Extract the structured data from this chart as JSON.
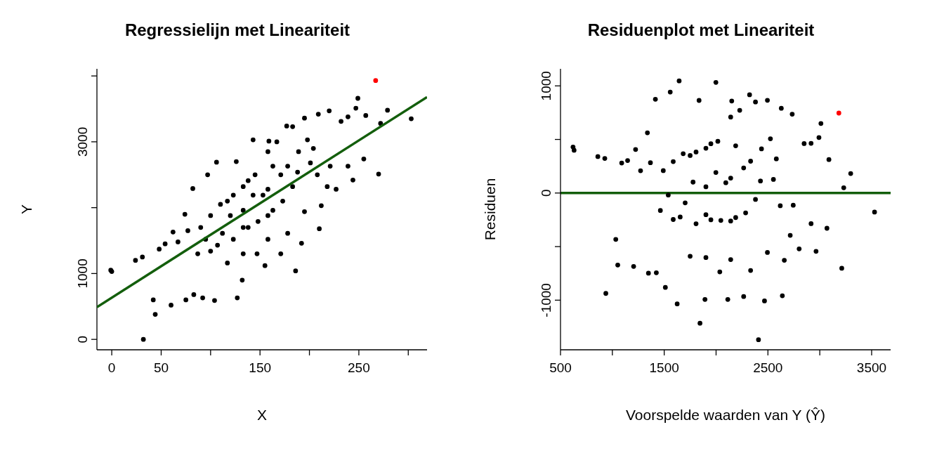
{
  "chart_data": [
    {
      "type": "scatter",
      "title": "Regressielijn met Lineariteit",
      "xlabel": "X",
      "ylabel": "Y",
      "xlim": [
        -15,
        319
      ],
      "ylim": [
        -158,
        4108
      ],
      "xticks": [
        0,
        50,
        {
          "value": 100,
          "label": null
        },
        150,
        {
          "value": 200,
          "label": null
        },
        250,
        {
          "value": 300,
          "label": null
        }
      ],
      "yticks": [
        0,
        1000,
        {
          "value": 2000,
          "label": null
        },
        3000,
        {
          "value": 4000,
          "label": null
        }
      ],
      "marker": "circle",
      "series": [
        {
          "color": "#000000",
          "x": [
            -1,
            0,
            24,
            32,
            42,
            44,
            31,
            48,
            60,
            54,
            62,
            75,
            74,
            82,
            83,
            92,
            97,
            106,
            104,
            100,
            112,
            117,
            126,
            127,
            132,
            133,
            138,
            143,
            147,
            155,
            158,
            159,
            167,
            153,
            163,
            171,
            177,
            183,
            192,
            186,
            195,
            198,
            195,
            210,
            209,
            220,
            212,
            218,
            227,
            232,
            239,
            239,
            244,
            247,
            249,
            257,
            255,
            270,
            272,
            279,
            303,
            120,
            133,
            143,
            158,
            171,
            178,
            188,
            201,
            148,
            138,
            123,
            107,
            95,
            87,
            77,
            67,
            158,
            173,
            183,
            208,
            221,
            133,
            123,
            110,
            100,
            90,
            145,
            163,
            189,
            204,
            117,
            133,
            158,
            178
          ],
          "values": [
            1050,
            1030,
            1200,
            0,
            600,
            380,
            1250,
            1370,
            520,
            1450,
            1630,
            600,
            1900,
            2290,
            680,
            630,
            2500,
            2690,
            590,
            1340,
            1610,
            2100,
            2700,
            630,
            900,
            1700,
            2410,
            3030,
            1300,
            1120,
            2850,
            3010,
            3000,
            2190,
            1960,
            1300,
            3240,
            3230,
            1460,
            1040,
            3360,
            3030,
            1940,
            1680,
            3420,
            3470,
            2030,
            2320,
            2280,
            3310,
            3380,
            2630,
            2420,
            3510,
            3660,
            3400,
            2740,
            2510,
            3280,
            3480,
            3350,
            1880,
            1960,
            2190,
            2280,
            2500,
            2630,
            2540,
            2680,
            1790,
            1700,
            1520,
            1430,
            1520,
            1300,
            1650,
            1480,
            1880,
            2100,
            2320,
            2500,
            2630,
            2320,
            2190,
            2050,
            1880,
            1700,
            2500,
            2630,
            2850,
            2900,
            1160,
            1300,
            1520,
            1610
          ]
        },
        {
          "color": "#ff0000",
          "x": [
            267
          ],
          "values": [
            3930
          ]
        },
        {
          "type": "line",
          "color": "#135e0c",
          "marker": "none",
          "x": [
            -15,
            319
          ],
          "values": [
            490,
            3680
          ]
        }
      ]
    },
    {
      "type": "scatter",
      "title": "Residuenplot met Lineariteit",
      "xlabel": "Voorspelde waarden van Y (Ŷ)",
      "ylabel": "Residuen",
      "xlim": [
        500,
        3683
      ],
      "ylim": [
        -1463,
        1159
      ],
      "xticks": [
        500,
        {
          "value": 1000,
          "label": null
        },
        1500,
        {
          "value": 2000,
          "label": null
        },
        2500,
        {
          "value": 3000,
          "label": null
        },
        3500
      ],
      "yticks": [
        -1000,
        {
          "value": -500,
          "label": null
        },
        0,
        {
          "value": 500,
          "label": null
        },
        1000
      ],
      "marker": "circle",
      "ref_lines": [
        {
          "axis": "y",
          "value": 0,
          "color": "#135e0c"
        }
      ],
      "series": [
        {
          "color": "#000000",
          "x": [
            621,
            631,
            860,
            937,
            1033,
            1052,
            927,
            1090,
            1205,
            1147,
            1224,
            1348,
            1338,
            1415,
            1424,
            1511,
            1558,
            1644,
            1625,
            1587,
            1702,
            1750,
            1836,
            1845,
            1893,
            1902,
            1950,
            1998,
            2036,
            2113,
            2141,
            2151,
            2228,
            2094,
            2189,
            2266,
            2323,
            2380,
            2467,
            2409,
            2495,
            2524,
            2495,
            2639,
            2629,
            2734,
            2658,
            2715,
            2801,
            2849,
            2916,
            2916,
            2964,
            2992,
            3011,
            3088,
            3069,
            3212,
            3231,
            3298,
            3528,
            1778,
            1902,
            1998,
            2141,
            2266,
            2333,
            2428,
            2553,
            2046,
            1950,
            1807,
            1654,
            1539,
            1463,
            1367,
            1272,
            2141,
            2285,
            2380,
            2619,
            2744,
            1902,
            1807,
            1683,
            1587,
            1491,
            2017,
            2189,
            2438,
            2581,
            1750,
            1902,
            2141,
            2333
          ],
          "values": [
            429,
            399,
            340,
            -937,
            -433,
            -672,
            323,
            280,
            -685,
            303,
            406,
            -748,
            562,
            875,
            -744,
            -881,
            942,
            1046,
            -1035,
            -247,
            -92,
            350,
            864,
            -1215,
            -993,
            -202,
            460,
            1032,
            -736,
            -993,
            709,
            859,
            772,
            96,
            -229,
            -966,
            917,
            850,
            -1007,
            -1369,
            865,
            506,
            -555,
            -959,
            791,
            736,
            -628,
            -395,
            -521,
            461,
            464,
            -286,
            -544,
            518,
            649,
            312,
            -329,
            -702,
            49,
            182,
            -178,
            102,
            58,
            192,
            139,
            234,
            297,
            112,
            127,
            -256,
            -250,
            -287,
            -224,
            -19,
            -163,
            283,
            208,
            -261,
            -185,
            -60,
            -119,
            -114,
            418,
            383,
            367,
            293,
            209,
            483,
            441,
            412,
            319,
            -590,
            -602,
            -621,
            -723
          ]
        },
        {
          "color": "#ff0000",
          "x": [
            3184
          ],
          "values": [
            746
          ]
        }
      ]
    }
  ]
}
